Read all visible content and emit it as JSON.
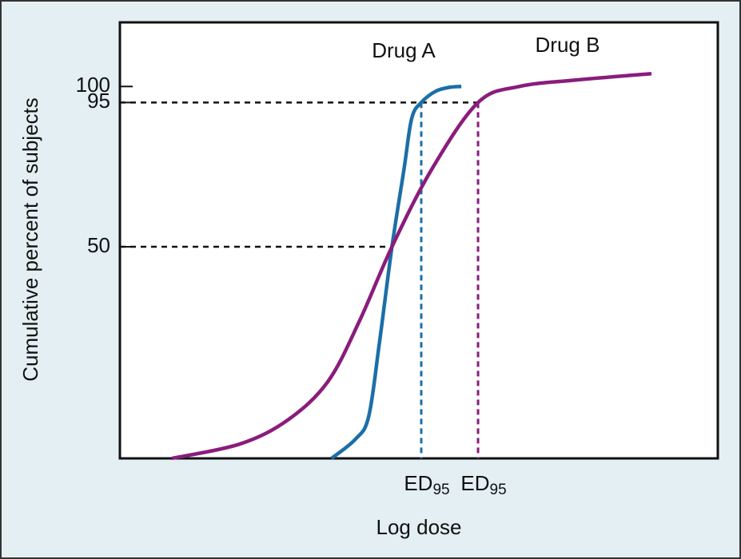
{
  "chart_data": {
    "type": "line",
    "y_label": "Cumulative percent of subjects",
    "x_label": "Log dose",
    "xlim": [
      0,
      100
    ],
    "ylim": [
      -16,
      120
    ],
    "yticks": [
      50,
      95,
      100
    ],
    "ed50_x": 45.5,
    "ed95_y": 95,
    "series": [
      {
        "name": "Drug A",
        "color": "#1b6fa8",
        "x": [
          35.4,
          39.4,
          41.6,
          43.4,
          45.5,
          47.5,
          48.8,
          50.4,
          52.8,
          55,
          57.1
        ],
        "values": [
          -16,
          -10,
          -3,
          20,
          50,
          74,
          90,
          95,
          98.5,
          99.7,
          100
        ],
        "ed95_x": 50.4,
        "ed_label": {
          "text": "ED",
          "subscript": "95"
        }
      },
      {
        "name": "Drug B",
        "color": "#8a1c7c",
        "x": [
          8.7,
          20.1,
          28.1,
          34.8,
          40.1,
          45.5,
          52.1,
          59.9,
          66.8,
          76.2,
          88.9
        ],
        "values": [
          -16,
          -11.5,
          -4,
          8,
          27,
          50,
          74,
          95,
          100,
          102,
          104
        ],
        "ed95_x": 59.9,
        "ed_label": {
          "text": "ED",
          "subscript": "95"
        }
      }
    ]
  }
}
